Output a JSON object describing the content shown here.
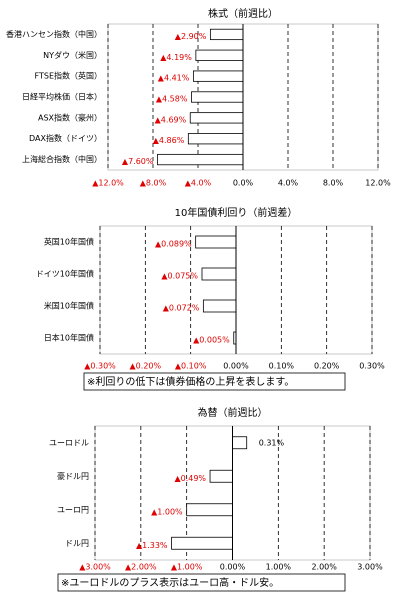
{
  "chart_data": [
    {
      "type": "barh",
      "title": "株式（前週比）",
      "categories": [
        "香港ハンセン指数（中国）",
        "NYダウ（米国）",
        "FTSE指数（英国）",
        "日経平均株価（日本）",
        "ASX指数（豪州）",
        "DAX指数（ドイツ）",
        "上海総合指数（中国）"
      ],
      "values": [
        -2.9,
        -4.19,
        -4.41,
        -4.58,
        -4.69,
        -4.86,
        -7.6
      ],
      "value_labels": [
        "▲2.90%",
        "▲4.19%",
        "▲4.41%",
        "▲4.58%",
        "▲4.69%",
        "▲4.86%",
        "▲7.60%"
      ],
      "color": "#ffffff",
      "xlim": [
        -12,
        12
      ],
      "xticks": [
        {
          "value": -12,
          "label": "▲12.0%"
        },
        {
          "value": -8,
          "label": "▲8.0%"
        },
        {
          "value": -4,
          "label": "▲4.0%"
        },
        {
          "value": 0,
          "label": "0.0%"
        },
        {
          "value": 4,
          "label": "4.0%"
        },
        {
          "value": 8,
          "label": "8.0%"
        },
        {
          "value": 12,
          "label": "12.0%"
        }
      ],
      "grid": true
    },
    {
      "type": "barh",
      "title": "10年国債利回り（前週差）",
      "categories": [
        "英国10年国債",
        "ドイツ10年国債",
        "米国10年国債",
        "日本10年国債"
      ],
      "values": [
        -0.089,
        -0.075,
        -0.072,
        -0.005
      ],
      "value_labels": [
        "▲0.089%",
        "▲0.075%",
        "▲0.072%",
        "▲0.005%"
      ],
      "color": "#ffffff",
      "xlim": [
        -0.3,
        0.3
      ],
      "xticks": [
        {
          "value": -0.3,
          "label": "▲0.30%"
        },
        {
          "value": -0.2,
          "label": "▲0.20%"
        },
        {
          "value": -0.1,
          "label": "▲0.10%"
        },
        {
          "value": 0,
          "label": "0.00%"
        },
        {
          "value": 0.1,
          "label": "0.10%"
        },
        {
          "value": 0.2,
          "label": "0.20%"
        },
        {
          "value": 0.3,
          "label": "0.30%"
        }
      ],
      "grid": true,
      "note": "※利回りの低下は債券価格の上昇を表します。"
    },
    {
      "type": "barh",
      "title": "為替（前週比）",
      "categories": [
        "ユーロドル",
        "豪ドル円",
        "ユーロ円",
        "ドル円"
      ],
      "values": [
        0.31,
        -0.49,
        -1.0,
        -1.33
      ],
      "value_labels": [
        "0.31%",
        "▲0.49%",
        "▲1.00%",
        "▲1.33%"
      ],
      "color": "#ffffff",
      "xlim": [
        -3,
        3
      ],
      "xticks": [
        {
          "value": -3,
          "label": "▲3.00%"
        },
        {
          "value": -2,
          "label": "▲2.00%"
        },
        {
          "value": -1,
          "label": "▲1.00%"
        },
        {
          "value": 0,
          "label": "0.00%"
        },
        {
          "value": 1,
          "label": "1.00%"
        },
        {
          "value": 2,
          "label": "2.00%"
        },
        {
          "value": 3,
          "label": "3.00%"
        }
      ],
      "grid": true,
      "note": "※ユーロドルのプラス表示はユーロ高・ドル安。"
    }
  ]
}
